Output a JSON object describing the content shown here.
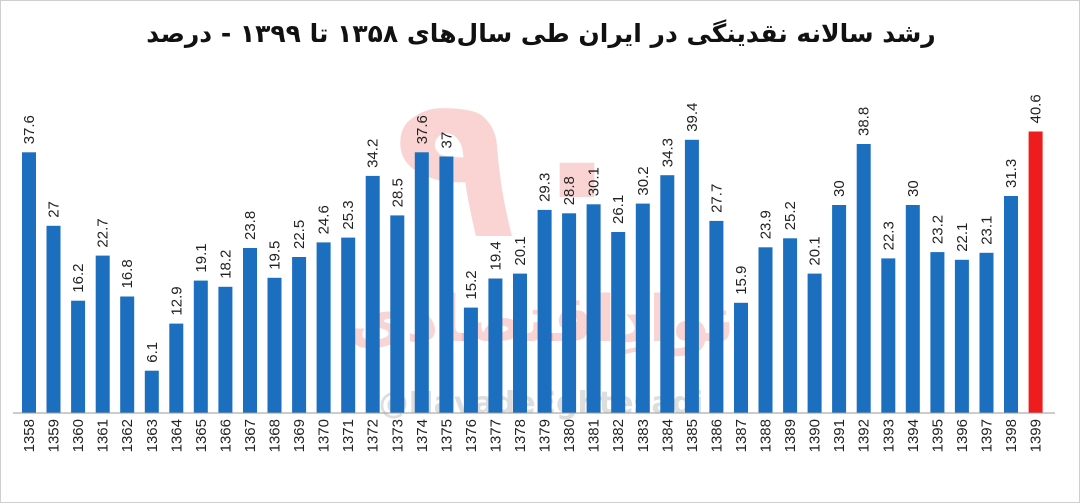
{
  "chart_data": {
    "type": "bar",
    "title": "رشد سالانه نقدینگی در ایران طی سال‌های ۱۳۵۸ تا ۱۳۹۹ - درصد",
    "categories": [
      "1358",
      "1359",
      "1360",
      "1361",
      "1362",
      "1363",
      "1364",
      "1365",
      "1366",
      "1367",
      "1368",
      "1369",
      "1370",
      "1371",
      "1372",
      "1373",
      "1374",
      "1375",
      "1376",
      "1377",
      "1378",
      "1379",
      "1380",
      "1381",
      "1382",
      "1383",
      "1384",
      "1385",
      "1386",
      "1387",
      "1388",
      "1389",
      "1390",
      "1391",
      "1392",
      "1393",
      "1394",
      "1395",
      "1396",
      "1397",
      "1398",
      "1399"
    ],
    "values": [
      37.6,
      27,
      16.2,
      22.7,
      16.8,
      6.1,
      12.9,
      19.1,
      18.2,
      23.8,
      19.5,
      22.5,
      24.6,
      25.3,
      34.2,
      28.5,
      37.6,
      37,
      15.2,
      19.4,
      20.1,
      29.3,
      28.8,
      30.1,
      26.1,
      30.2,
      34.3,
      39.4,
      27.7,
      15.9,
      23.9,
      25.2,
      20.1,
      30,
      38.8,
      22.3,
      30,
      23.2,
      22.1,
      23.1,
      31.3,
      40.6
    ],
    "value_labels": [
      "37.6",
      "27",
      "16.2",
      "22.7",
      "16.8",
      "6.1",
      "12.9",
      "19.1",
      "18.2",
      "23.8",
      "19.5",
      "22.5",
      "24.6",
      "25.3",
      "34.2",
      "28.5",
      "37.6",
      "37",
      "15.2",
      "19.4",
      "20.1",
      "29.3",
      "28.8",
      "30.1",
      "26.1",
      "30.2",
      "34.3",
      "39.4",
      "27.7",
      "15.9",
      "23.9",
      "25.2",
      "20.1",
      "30",
      "38.8",
      "22.3",
      "30",
      "23.2",
      "22.1",
      "23.1",
      "31.3",
      "40.6"
    ],
    "highlight_index": 41,
    "ylim": [
      0,
      45
    ],
    "grid": false,
    "legend": "none",
    "xlabel": "",
    "ylabel": "",
    "colors": {
      "bar": "#1b6fbe",
      "highlight": "#ee1c1c",
      "axis": "#999999"
    }
  },
  "watermark": {
    "brand": "نوادِاقتصادی",
    "handle": "@NavadeEghtesadi",
    "logo": "۹۰"
  }
}
